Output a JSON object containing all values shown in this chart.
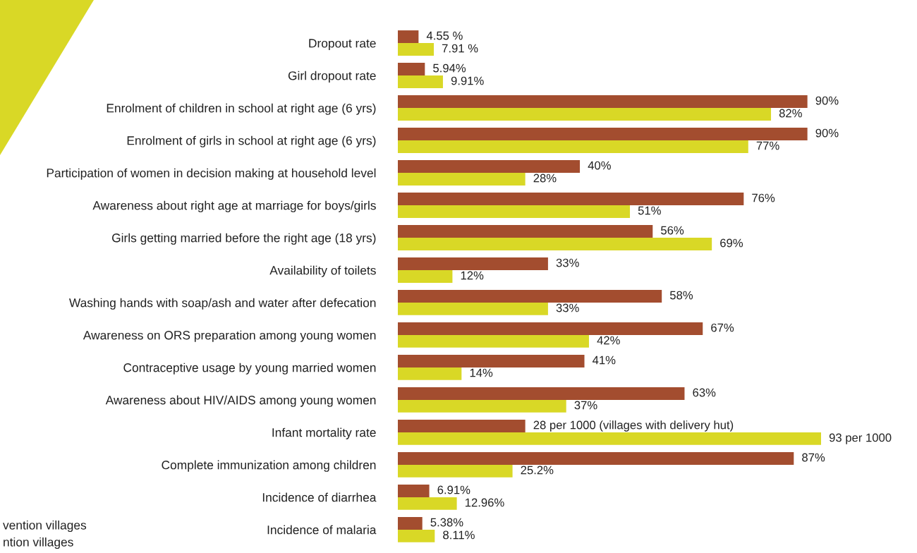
{
  "chart_data": {
    "type": "bar",
    "orientation": "horizontal",
    "categories": [
      "Dropout rate",
      "Girl dropout rate",
      "Enrolment of children in school at right age (6 yrs)",
      "Enrolment of girls in school at right age (6 yrs)",
      "Participation of women in decision making at household level",
      "Awareness about right age at marriage for boys/girls",
      "Girls getting married before the right age (18 yrs)",
      "Availability of toilets",
      "Washing hands with soap/ash and water after defecation",
      "Awareness on ORS preparation among young women",
      "Contraceptive usage by young married women",
      "Awareness about HIV/AIDS among young women",
      "Infant mortality rate",
      "Complete immunization among children",
      "Incidence of diarrhea",
      "Incidence of malaria"
    ],
    "series": [
      {
        "color": "#a34d2f",
        "values": [
          4.55,
          5.94,
          90,
          90,
          40,
          76,
          56,
          33,
          58,
          67,
          41,
          63,
          28,
          87,
          6.91,
          5.38
        ],
        "value_labels": [
          "4.55 %",
          "5.94%",
          "90%",
          "90%",
          "40%",
          "76%",
          "56%",
          "33%",
          "58%",
          "67%",
          "41%",
          "63%",
          "28 per 1000 (villages with delivery hut)",
          "87%",
          "6.91%",
          "5.38%"
        ]
      },
      {
        "color": "#d9d826",
        "values": [
          7.91,
          9.91,
          82,
          77,
          28,
          51,
          69,
          12,
          33,
          42,
          14,
          37,
          93,
          25.2,
          12.96,
          8.11
        ],
        "value_labels": [
          "7.91 %",
          "9.91%",
          "82%",
          "77%",
          "28%",
          "51%",
          "69%",
          "12%",
          "33%",
          "42%",
          "14%",
          "37%",
          "93 per 1000",
          "25.2%",
          "12.96%",
          "8.11%"
        ]
      }
    ],
    "annotations": [
      "vention villages",
      "ntion villages"
    ],
    "legend": false,
    "grid": false
  }
}
